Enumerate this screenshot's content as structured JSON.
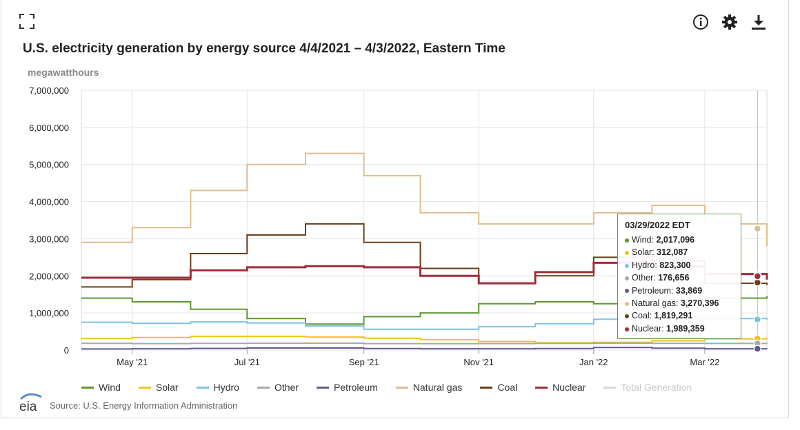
{
  "toolbar": {
    "expand_icon": "fullscreen-icon",
    "info_icon": "info-icon",
    "settings_icon": "gear-icon",
    "download_icon": "download-icon"
  },
  "header": {
    "title": "U.S. electricity generation by energy source 4/4/2021 – 4/3/2022, Eastern Time",
    "unit": "megawatthours"
  },
  "chart_data": {
    "type": "line",
    "title": "U.S. electricity generation by energy source 4/4/2021 – 4/3/2022, Eastern Time",
    "ylabel": "megawatthours",
    "xlabel": "",
    "ylim": [
      0,
      7000000
    ],
    "yticks": [
      "0",
      "1,000,000",
      "2,000,000",
      "3,000,000",
      "4,000,000",
      "5,000,000",
      "6,000,000",
      "7,000,000"
    ],
    "xticks": [
      "May '21",
      "Jul '21",
      "Sep '21",
      "Nov '21",
      "Jan '22",
      "Mar '22"
    ],
    "xtick_dates": [
      "2021-05-01",
      "2021-07-01",
      "2021-09-01",
      "2021-11-01",
      "2022-01-01",
      "2022-03-01"
    ],
    "x_range": [
      "2021-04-04",
      "2022-04-03"
    ],
    "grid": true,
    "legend_position": "bottom",
    "series_monthly": [
      {
        "name": "Wind",
        "color": "#5d9732",
        "dates": [
          "2021-04-04",
          "2021-05-01",
          "2021-06-01",
          "2021-07-01",
          "2021-08-01",
          "2021-09-01",
          "2021-10-01",
          "2021-11-01",
          "2021-12-01",
          "2022-01-01",
          "2022-02-01",
          "2022-03-01",
          "2022-04-03"
        ],
        "values": [
          1400000,
          1300000,
          1100000,
          850000,
          700000,
          900000,
          1000000,
          1250000,
          1300000,
          1250000,
          1350000,
          1400000,
          1450000
        ]
      },
      {
        "name": "Solar",
        "color": "#f0c325",
        "dates": [
          "2021-04-04",
          "2021-05-01",
          "2021-06-01",
          "2021-07-01",
          "2021-08-01",
          "2021-09-01",
          "2021-10-01",
          "2021-11-01",
          "2021-12-01",
          "2022-01-01",
          "2022-02-01",
          "2022-03-01",
          "2022-04-03"
        ],
        "values": [
          310000,
          340000,
          370000,
          370000,
          350000,
          320000,
          280000,
          230000,
          200000,
          210000,
          250000,
          300000,
          330000
        ]
      },
      {
        "name": "Hydro",
        "color": "#7ec3e3",
        "dates": [
          "2021-04-04",
          "2021-05-01",
          "2021-06-01",
          "2021-07-01",
          "2021-08-01",
          "2021-09-01",
          "2021-10-01",
          "2021-11-01",
          "2021-12-01",
          "2022-01-01",
          "2022-02-01",
          "2022-03-01",
          "2022-04-03"
        ],
        "values": [
          750000,
          720000,
          760000,
          730000,
          650000,
          560000,
          560000,
          630000,
          710000,
          830000,
          850000,
          850000,
          820000
        ]
      },
      {
        "name": "Other",
        "color": "#a9a9a9",
        "dates": [
          "2021-04-04",
          "2021-05-01",
          "2021-06-01",
          "2021-07-01",
          "2021-08-01",
          "2021-09-01",
          "2021-10-01",
          "2021-11-01",
          "2021-12-01",
          "2022-01-01",
          "2022-02-01",
          "2022-03-01",
          "2022-04-03"
        ],
        "values": [
          180000,
          175000,
          180000,
          185000,
          185000,
          175000,
          170000,
          175000,
          180000,
          185000,
          180000,
          178000,
          176000
        ]
      },
      {
        "name": "Petroleum",
        "color": "#635a8f",
        "dates": [
          "2021-04-04",
          "2021-05-01",
          "2021-06-01",
          "2021-07-01",
          "2021-08-01",
          "2021-09-01",
          "2021-10-01",
          "2021-11-01",
          "2021-12-01",
          "2022-01-01",
          "2022-02-01",
          "2022-03-01",
          "2022-04-03"
        ],
        "values": [
          30000,
          35000,
          45000,
          55000,
          55000,
          40000,
          35000,
          35000,
          40000,
          70000,
          50000,
          35000,
          34000
        ]
      },
      {
        "name": "Natural gas",
        "color": "#ddbe8f",
        "dates": [
          "2021-04-04",
          "2021-05-01",
          "2021-06-01",
          "2021-07-01",
          "2021-08-01",
          "2021-09-01",
          "2021-10-01",
          "2021-11-01",
          "2021-12-01",
          "2022-01-01",
          "2022-02-01",
          "2022-03-01",
          "2022-04-03"
        ],
        "values": [
          2900000,
          3300000,
          4300000,
          5000000,
          5300000,
          4700000,
          3700000,
          3400000,
          3400000,
          3700000,
          3900000,
          3400000,
          2800000
        ]
      },
      {
        "name": "Coal",
        "color": "#6b3d16",
        "dates": [
          "2021-04-04",
          "2021-05-01",
          "2021-06-01",
          "2021-07-01",
          "2021-08-01",
          "2021-09-01",
          "2021-10-01",
          "2021-11-01",
          "2021-12-01",
          "2022-01-01",
          "2022-02-01",
          "2022-03-01",
          "2022-04-03"
        ],
        "values": [
          1700000,
          1900000,
          2600000,
          3100000,
          3400000,
          2900000,
          2200000,
          1800000,
          2000000,
          2500000,
          2400000,
          1800000,
          1750000
        ]
      },
      {
        "name": "Nuclear",
        "color": "#a02c3b",
        "dates": [
          "2021-04-04",
          "2021-05-01",
          "2021-06-01",
          "2021-07-01",
          "2021-08-01",
          "2021-09-01",
          "2021-10-01",
          "2021-11-01",
          "2021-12-01",
          "2022-01-01",
          "2022-02-01",
          "2022-03-01",
          "2022-04-03"
        ],
        "values": [
          1950000,
          1950000,
          2150000,
          2230000,
          2260000,
          2230000,
          2000000,
          1800000,
          2100000,
          2350000,
          2250000,
          2050000,
          1900000
        ]
      }
    ],
    "tooltip_date": "2022-03-29"
  },
  "tooltip": {
    "header": "03/29/2022 EDT",
    "rows": [
      {
        "label": "Wind: ",
        "value": "2,017,096",
        "color": "#5d9732"
      },
      {
        "label": "Solar: ",
        "value": "312,087",
        "color": "#f0c325"
      },
      {
        "label": "Hydro: ",
        "value": "823,300",
        "color": "#7ec3e3"
      },
      {
        "label": "Other: ",
        "value": "176,656",
        "color": "#a9a9a9"
      },
      {
        "label": "Petroleum: ",
        "value": "33,869",
        "color": "#635a8f"
      },
      {
        "label": "Natural gas: ",
        "value": "3,270,396",
        "color": "#ddbe8f"
      },
      {
        "label": "Coal: ",
        "value": "1,819,291",
        "color": "#6b3d16"
      },
      {
        "label": "Nuclear: ",
        "value": "1,989,359",
        "color": "#a02c3b"
      }
    ]
  },
  "legend": [
    {
      "label": "Wind",
      "color": "#5d9732",
      "active": true
    },
    {
      "label": "Solar",
      "color": "#f0c325",
      "active": true
    },
    {
      "label": "Hydro",
      "color": "#7ec3e3",
      "active": true
    },
    {
      "label": "Other",
      "color": "#a9a9a9",
      "active": true
    },
    {
      "label": "Petroleum",
      "color": "#635a8f",
      "active": true
    },
    {
      "label": "Natural gas",
      "color": "#ddbe8f",
      "active": true
    },
    {
      "label": "Coal",
      "color": "#6b3d16",
      "active": true
    },
    {
      "label": "Nuclear",
      "color": "#a02c3b",
      "active": true
    },
    {
      "label": "Total Generation",
      "color": "#d8d8d8",
      "active": false
    }
  ],
  "footer": {
    "logo": "eia",
    "source": "Source: U.S. Energy Information Administration"
  }
}
